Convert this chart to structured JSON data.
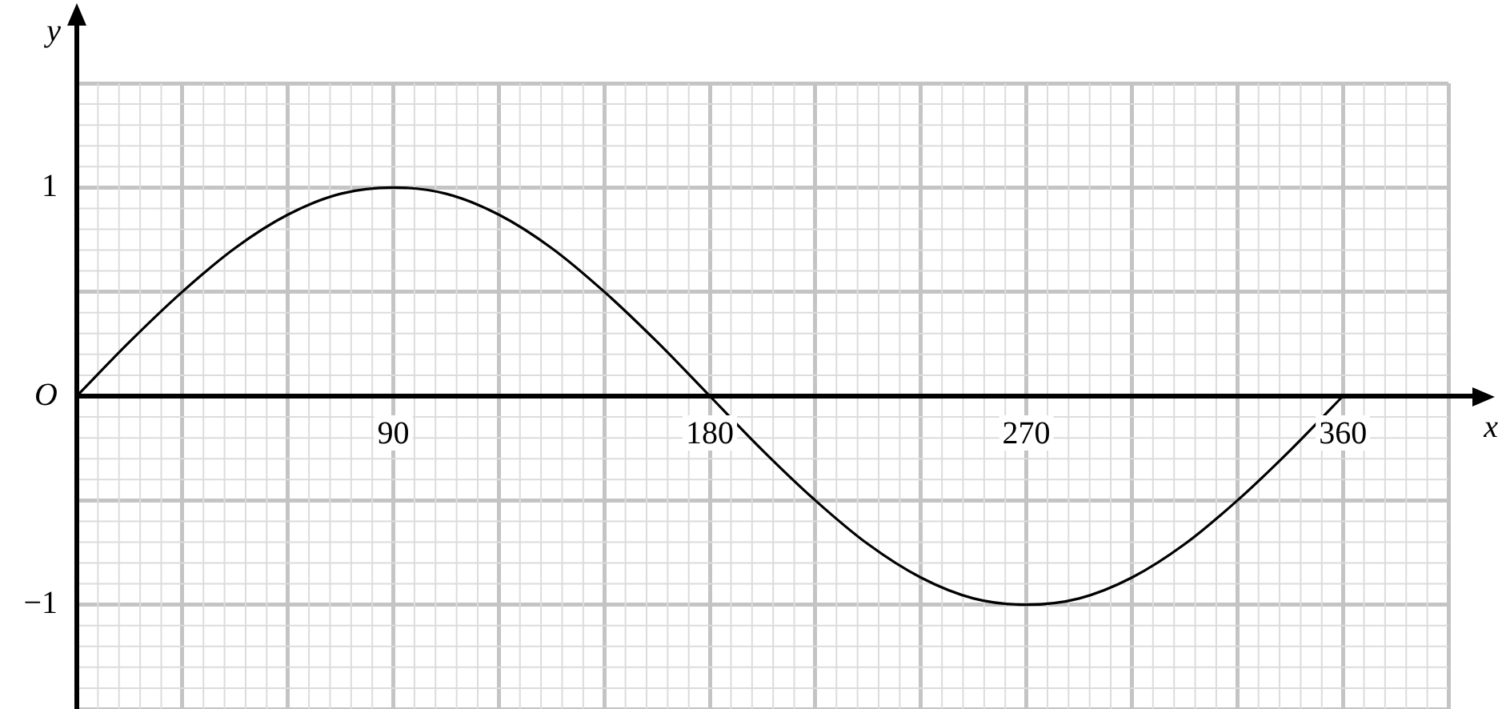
{
  "chart_data": {
    "type": "line",
    "xlabel": "x",
    "ylabel": "y",
    "x": [
      0,
      15,
      30,
      45,
      60,
      75,
      90,
      105,
      120,
      135,
      150,
      165,
      180,
      195,
      210,
      225,
      240,
      255,
      270,
      285,
      300,
      315,
      330,
      345,
      360
    ],
    "series": [
      {
        "color": "#000000",
        "values": [
          0,
          0.26,
          0.5,
          0.71,
          0.87,
          0.97,
          1,
          0.97,
          0.87,
          0.71,
          0.5,
          0.26,
          0,
          -0.26,
          -0.5,
          -0.71,
          -0.87,
          -0.97,
          -1,
          -0.97,
          -0.87,
          -0.71,
          -0.5,
          -0.26,
          0
        ]
      }
    ],
    "xlim": [
      0,
      390
    ],
    "xticks": [
      {
        "value": 0,
        "label": null
      },
      {
        "value": 30,
        "label": null
      },
      {
        "value": 60,
        "label": null
      },
      90,
      {
        "value": 120,
        "label": null
      },
      {
        "value": 150,
        "label": null
      },
      180,
      {
        "value": 210,
        "label": null
      },
      {
        "value": 240,
        "label": null
      },
      270,
      {
        "value": 300,
        "label": null
      },
      {
        "value": 330,
        "label": null
      },
      360,
      {
        "value": 390,
        "label": null
      }
    ],
    "ylim": [
      -1.5,
      1.5
    ],
    "yticks": [
      {
        "value": -1.5,
        "label": null
      },
      {
        "value": -1,
        "label": "−1"
      },
      {
        "value": -0.5,
        "label": null
      },
      {
        "value": 0,
        "label": "O"
      },
      {
        "value": 0.5,
        "label": null
      },
      1,
      {
        "value": 1.5,
        "label": null
      }
    ],
    "grid": true,
    "legend": false,
    "marker": "none",
    "line_style": "solid"
  }
}
